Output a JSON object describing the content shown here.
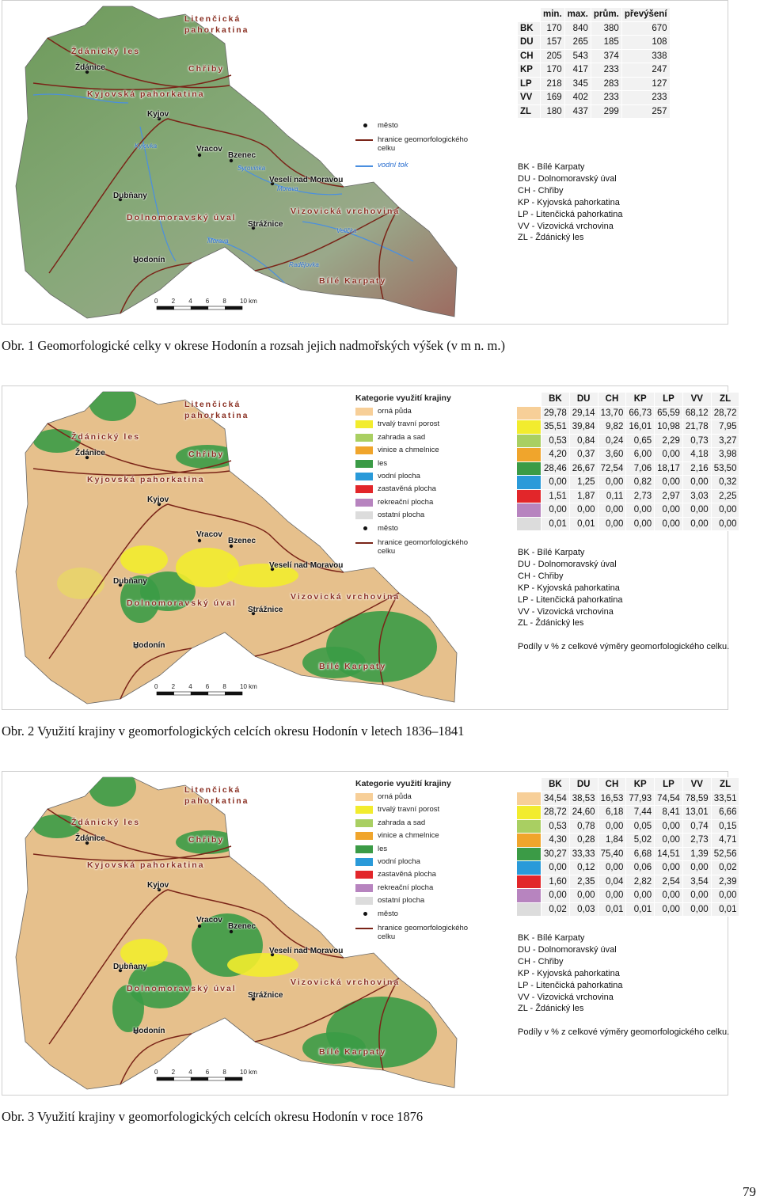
{
  "figures": [
    {
      "caption": "Obr. 1 Geomorfologické celky v okrese Hodonín a rozsah jejich nadmořských výšek (v m n. m.)",
      "map_labels": [
        "Litenčická pahorkatina",
        "Ždánický les",
        "Chřiby",
        "Kyjovská pahorkatina",
        "Kyjov",
        "Ždánice",
        "Vracov",
        "Bzenec",
        "Veselí nad Moravou",
        "Dubňany",
        "Dolnomoravský úval",
        "Vizovická vrchovina",
        "Strážnice",
        "Hodonín",
        "Bílé Karpaty",
        "Syrovinka",
        "Morava",
        "Velička",
        "Kyjovka",
        "Radějovka",
        "Morava"
      ],
      "scale": [
        "0",
        "2",
        "4",
        "6",
        "8",
        "10 km"
      ],
      "legend": {
        "town": "město",
        "border": "hranice geomorfologického celku",
        "river": "vodní tok"
      },
      "table": {
        "headers": [
          "min.",
          "max.",
          "prům.",
          "převýšení"
        ],
        "rows": [
          {
            "code": "BK",
            "values": [
              "170",
              "840",
              "380",
              "670"
            ]
          },
          {
            "code": "DU",
            "values": [
              "157",
              "265",
              "185",
              "108"
            ]
          },
          {
            "code": "CH",
            "values": [
              "205",
              "543",
              "374",
              "338"
            ]
          },
          {
            "code": "KP",
            "values": [
              "170",
              "417",
              "233",
              "247"
            ]
          },
          {
            "code": "LP",
            "values": [
              "218",
              "345",
              "283",
              "127"
            ]
          },
          {
            "code": "VV",
            "values": [
              "169",
              "402",
              "233",
              "233"
            ]
          },
          {
            "code": "ZL",
            "values": [
              "180",
              "437",
              "299",
              "257"
            ]
          }
        ]
      },
      "abbreviations": [
        "BK - Bílé Karpaty",
        "DU - Dolnomoravský úval",
        "CH - Chřiby",
        "KP - Kyjovská pahorkatina",
        "LP - Litenčická pahorkatina",
        "VV - Vizovická vrchovina",
        "ZL - Ždánický les"
      ]
    },
    {
      "caption": "Obr. 2 Využití krajiny v geomorfologických celcích okresu Hodonín v letech 1836–1841",
      "map_labels": [
        "Litenčická pahorkatina",
        "Ždánický les",
        "Chřiby",
        "Kyjovská pahorkatina",
        "Kyjov",
        "Ždánice",
        "Vracov",
        "Bzenec",
        "Veselí nad Moravou",
        "Dubňany",
        "Dolnomoravský úval",
        "Vizovická vrchovina",
        "Strážnice",
        "Hodonín",
        "Bílé Karpaty"
      ],
      "scale": [
        "0",
        "2",
        "4",
        "6",
        "8",
        "10 km"
      ],
      "legend": {
        "title": "Kategorie využití krajiny",
        "items": [
          {
            "label": "orná půda",
            "color": "#f7cf98"
          },
          {
            "label": "trvalý travní porost",
            "color": "#f2ec2e"
          },
          {
            "label": "zahrada a sad",
            "color": "#a9cf62"
          },
          {
            "label": "vinice a chmelnice",
            "color": "#f0a52c"
          },
          {
            "label": "les",
            "color": "#3b9b46"
          },
          {
            "label": "vodní plocha",
            "color": "#2a9ad9"
          },
          {
            "label": "zastavěná plocha",
            "color": "#e2262a"
          },
          {
            "label": "rekreační plocha",
            "color": "#b784bf"
          },
          {
            "label": "ostatní plocha",
            "color": "#dcdcdc"
          }
        ],
        "town": "město",
        "border": "hranice geomorfologického celku"
      },
      "table": {
        "headers": [
          "BK",
          "DU",
          "CH",
          "KP",
          "LP",
          "VV",
          "ZL"
        ],
        "rows": [
          {
            "values": [
              "29,78",
              "29,14",
              "13,70",
              "66,73",
              "65,59",
              "68,12",
              "28,72"
            ]
          },
          {
            "values": [
              "35,51",
              "39,84",
              "9,82",
              "16,01",
              "10,98",
              "21,78",
              "7,95"
            ]
          },
          {
            "values": [
              "0,53",
              "0,84",
              "0,24",
              "0,65",
              "2,29",
              "0,73",
              "3,27"
            ]
          },
          {
            "values": [
              "4,20",
              "0,37",
              "3,60",
              "6,00",
              "0,00",
              "4,18",
              "3,98"
            ]
          },
          {
            "values": [
              "28,46",
              "26,67",
              "72,54",
              "7,06",
              "18,17",
              "2,16",
              "53,50"
            ]
          },
          {
            "values": [
              "0,00",
              "1,25",
              "0,00",
              "0,82",
              "0,00",
              "0,00",
              "0,32"
            ]
          },
          {
            "values": [
              "1,51",
              "1,87",
              "0,11",
              "2,73",
              "2,97",
              "3,03",
              "2,25"
            ]
          },
          {
            "values": [
              "0,00",
              "0,00",
              "0,00",
              "0,00",
              "0,00",
              "0,00",
              "0,00"
            ]
          },
          {
            "values": [
              "0,01",
              "0,01",
              "0,00",
              "0,00",
              "0,00",
              "0,00",
              "0,00"
            ]
          }
        ]
      },
      "abbreviations": [
        "BK - Bílé Karpaty",
        "DU - Dolnomoravský úval",
        "CH - Chřiby",
        "KP - Kyjovská pahorkatina",
        "LP - Litenčická pahorkatina",
        "VV - Vizovická vrchovina",
        "ZL - Ždánický les"
      ],
      "note": "Podíly v % z celkové výměry geomorfologického celku."
    },
    {
      "caption": "Obr. 3 Využití krajiny v geomorfologických celcích okresu Hodonín v roce 1876",
      "map_labels": [
        "Litenčická pahorkatina",
        "Ždánický les",
        "Chřiby",
        "Kyjovská pahorkatina",
        "Kyjov",
        "Ždánice",
        "Vracov",
        "Bzenec",
        "Veselí nad Moravou",
        "Dubňany",
        "Dolnomoravský úval",
        "Vizovická vrchovina",
        "Strážnice",
        "Hodonín",
        "Bílé Karpaty"
      ],
      "scale": [
        "0",
        "2",
        "4",
        "6",
        "8",
        "10 km"
      ],
      "legend": {
        "title": "Kategorie využití krajiny",
        "items": [
          {
            "label": "orná půda",
            "color": "#f7cf98"
          },
          {
            "label": "trvalý travní porost",
            "color": "#f2ec2e"
          },
          {
            "label": "zahrada a sad",
            "color": "#a9cf62"
          },
          {
            "label": "vinice a chmelnice",
            "color": "#f0a52c"
          },
          {
            "label": "les",
            "color": "#3b9b46"
          },
          {
            "label": "vodní plocha",
            "color": "#2a9ad9"
          },
          {
            "label": "zastavěná plocha",
            "color": "#e2262a"
          },
          {
            "label": "rekreační plocha",
            "color": "#b784bf"
          },
          {
            "label": "ostatní plocha",
            "color": "#dcdcdc"
          }
        ],
        "town": "město",
        "border": "hranice geomorfologického celku"
      },
      "table": {
        "headers": [
          "BK",
          "DU",
          "CH",
          "KP",
          "LP",
          "VV",
          "ZL"
        ],
        "rows": [
          {
            "values": [
              "34,54",
              "38,53",
              "16,53",
              "77,93",
              "74,54",
              "78,59",
              "33,51"
            ]
          },
          {
            "values": [
              "28,72",
              "24,60",
              "6,18",
              "7,44",
              "8,41",
              "13,01",
              "6,66"
            ]
          },
          {
            "values": [
              "0,53",
              "0,78",
              "0,00",
              "0,05",
              "0,00",
              "0,74",
              "0,15"
            ]
          },
          {
            "values": [
              "4,30",
              "0,28",
              "1,84",
              "5,02",
              "0,00",
              "2,73",
              "4,71"
            ]
          },
          {
            "values": [
              "30,27",
              "33,33",
              "75,40",
              "6,68",
              "14,51",
              "1,39",
              "52,56"
            ]
          },
          {
            "values": [
              "0,00",
              "0,12",
              "0,00",
              "0,06",
              "0,00",
              "0,00",
              "0,02"
            ]
          },
          {
            "values": [
              "1,60",
              "2,35",
              "0,04",
              "2,82",
              "2,54",
              "3,54",
              "2,39"
            ]
          },
          {
            "values": [
              "0,00",
              "0,00",
              "0,00",
              "0,00",
              "0,00",
              "0,00",
              "0,00"
            ]
          },
          {
            "values": [
              "0,02",
              "0,03",
              "0,01",
              "0,01",
              "0,00",
              "0,00",
              "0,01"
            ]
          }
        ]
      },
      "abbreviations": [
        "BK - Bílé Karpaty",
        "DU - Dolnomoravský úval",
        "CH - Chřiby",
        "KP - Kyjovská pahorkatina",
        "LP - Litenčická pahorkatina",
        "VV - Vizovická vrchovina",
        "ZL - Ždánický les"
      ],
      "note": "Podíly v % z celkové výměry geomorfologického celku."
    }
  ],
  "page_number": "79"
}
